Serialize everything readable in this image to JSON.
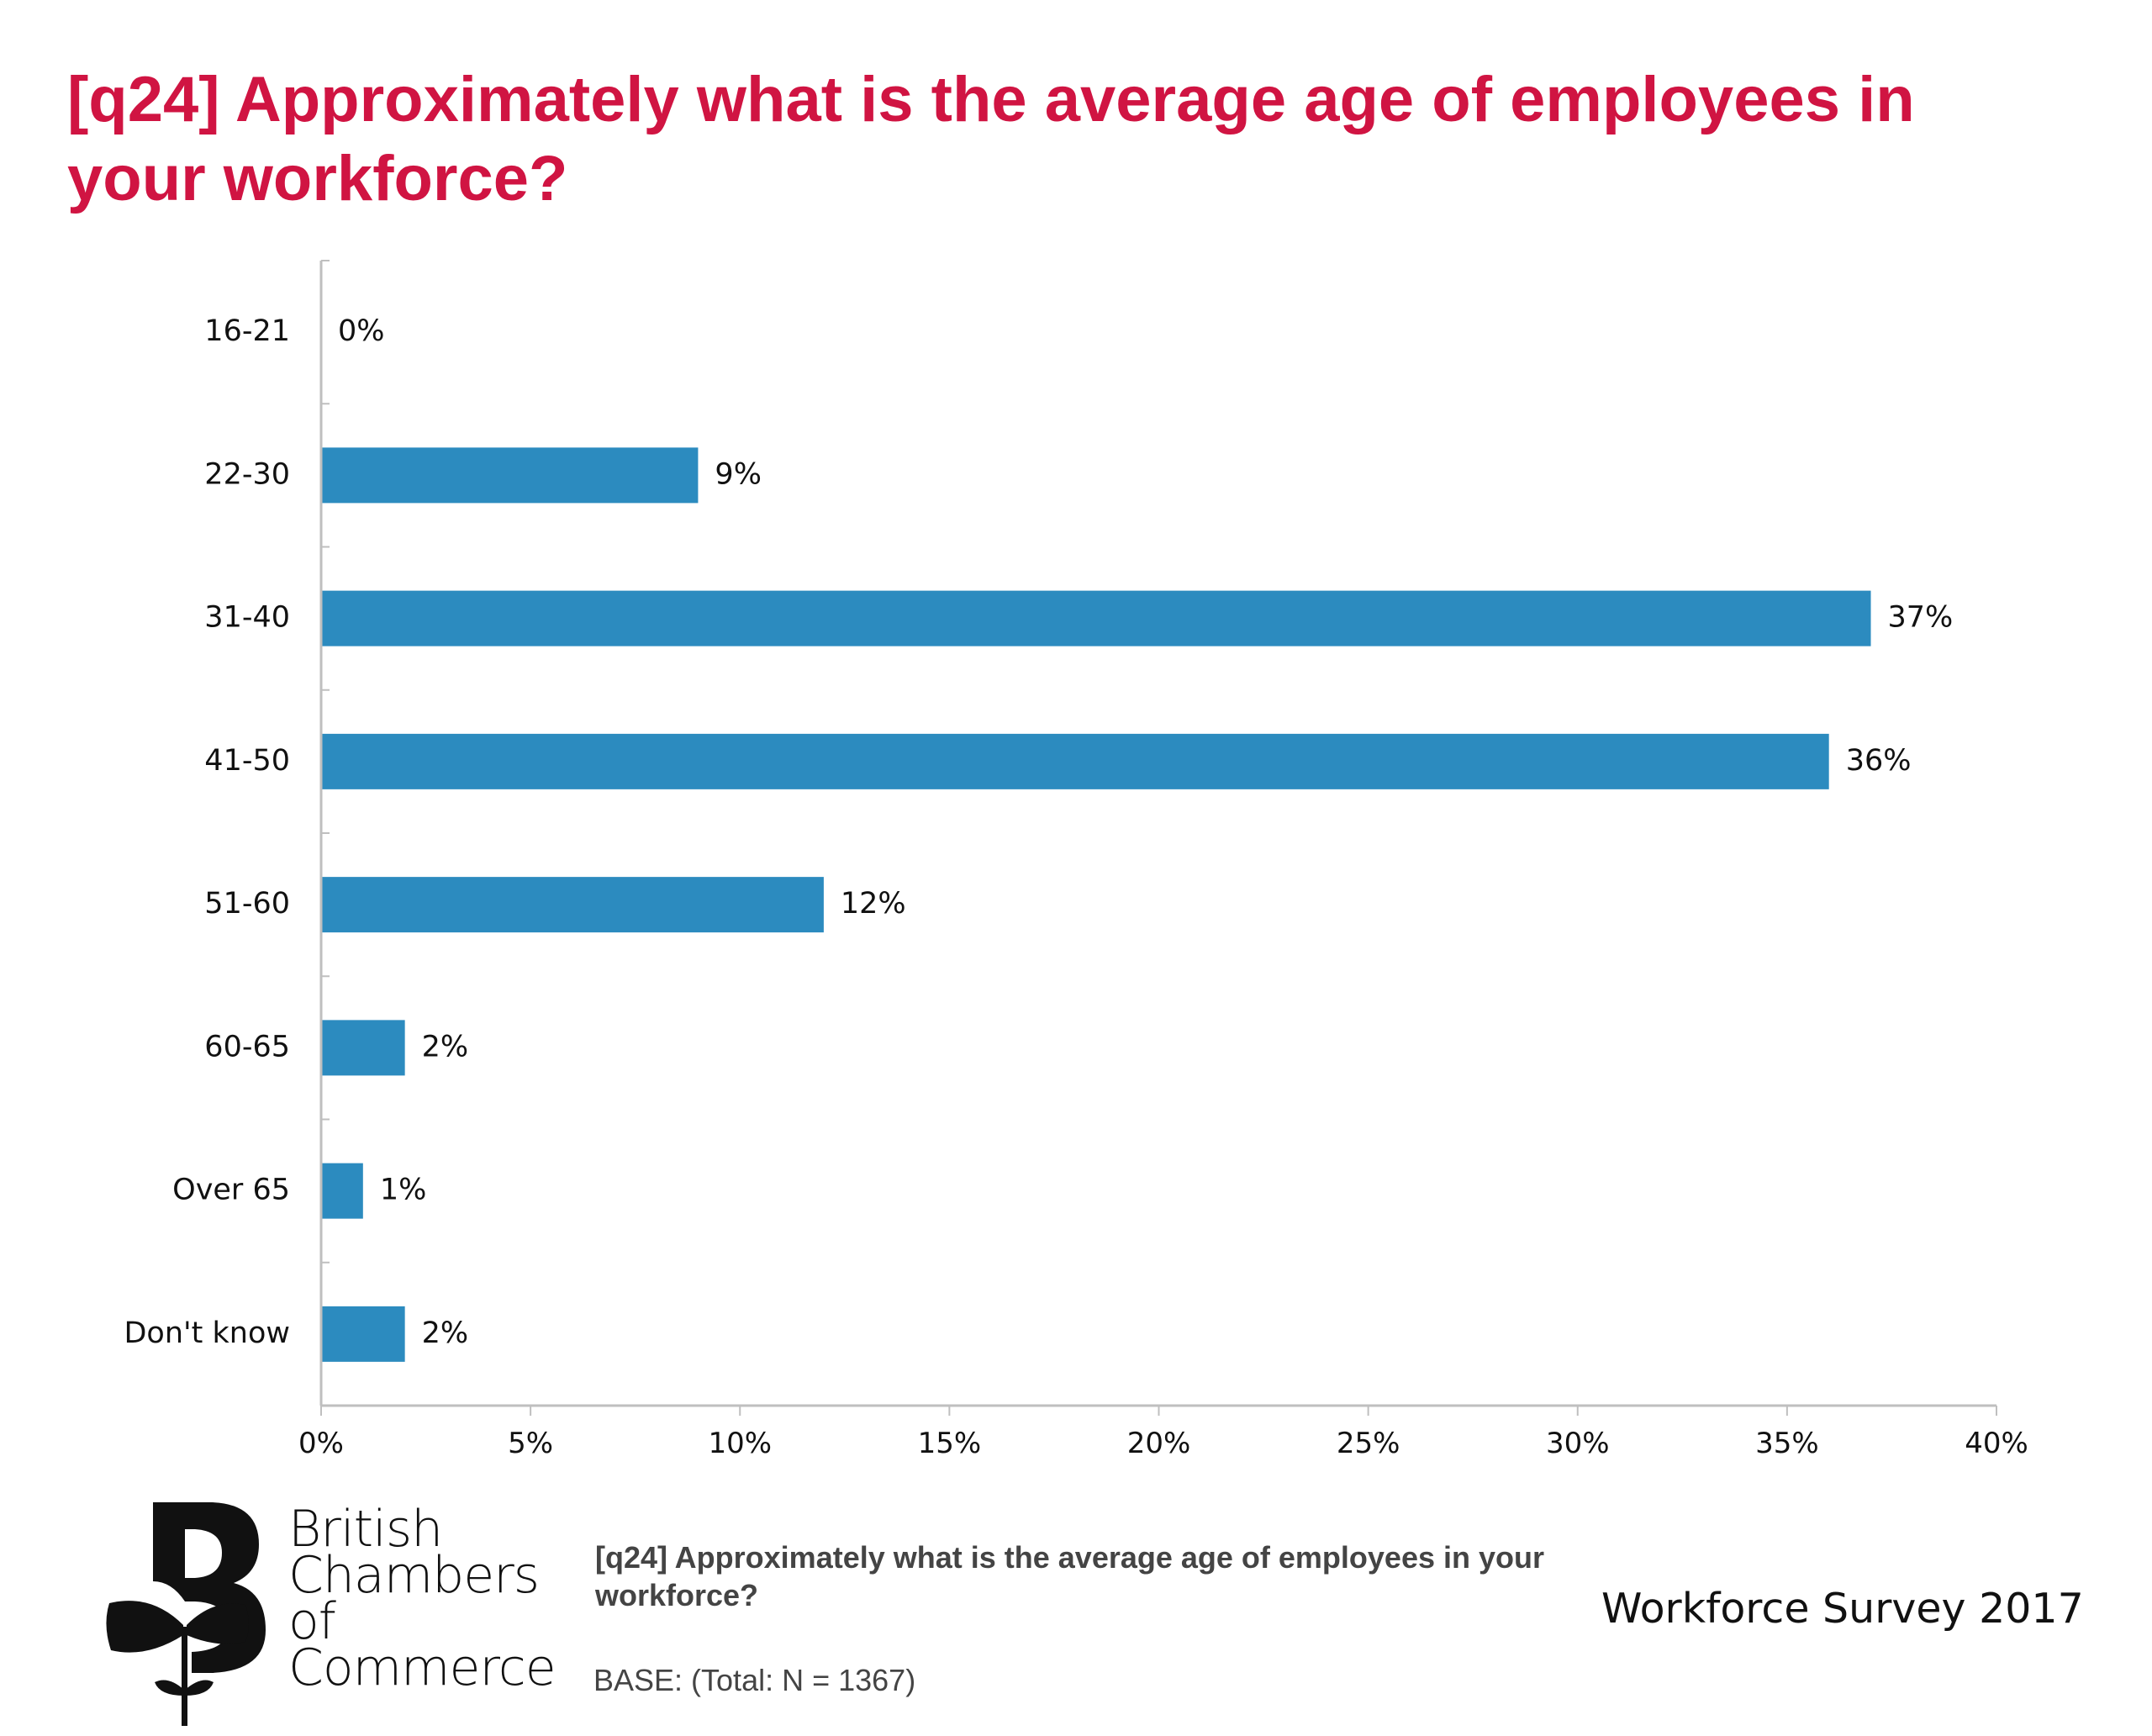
{
  "title": "[q24] Approximately what is the average age of employees in your workforce?",
  "chart_data": {
    "type": "bar",
    "orientation": "horizontal",
    "categories": [
      "16-21",
      "22-30",
      "31-40",
      "41-50",
      "51-60",
      "60-65",
      "Over 65",
      "Don't know"
    ],
    "values": [
      0,
      9,
      37,
      36,
      12,
      2,
      1,
      2
    ],
    "value_labels": [
      "0%",
      "9%",
      "37%",
      "36%",
      "12%",
      "2%",
      "1%",
      "2%"
    ],
    "xlim": [
      0,
      40
    ],
    "x_ticks": [
      0,
      5,
      10,
      15,
      20,
      25,
      30,
      35,
      40
    ],
    "x_tick_labels": [
      "0%",
      "5%",
      "10%",
      "15%",
      "20%",
      "25%",
      "30%",
      "35%",
      "40%"
    ],
    "bar_color": "#2c8bbf",
    "grid": false,
    "legend": "none"
  },
  "footer": {
    "logo_lines": [
      "British",
      "Chambers of",
      "Commerce"
    ],
    "question": "[q24] Approximately what is the average age of employees in your workforce?",
    "base": "BASE: (Total: N = 1367)",
    "survey": "Workforce Survey 2017"
  },
  "colors": {
    "title": "#d01442",
    "bar": "#2c8bbf",
    "axis": "#bfbfbf"
  },
  "icons": {
    "logo": "bcc-logo-icon"
  }
}
